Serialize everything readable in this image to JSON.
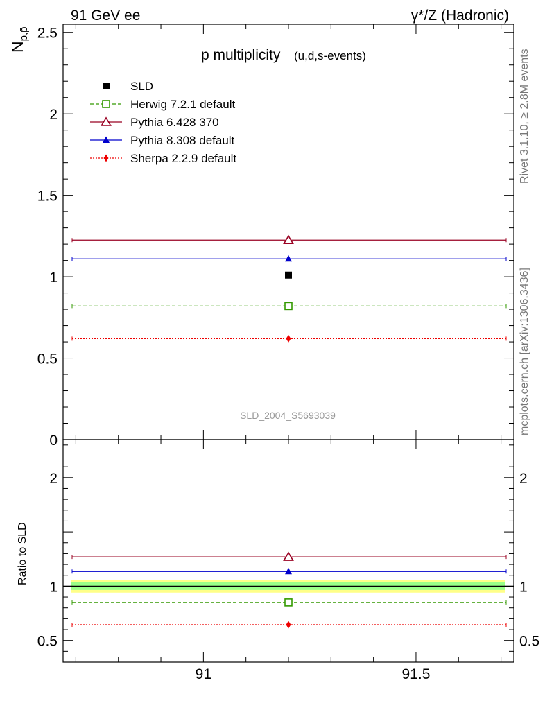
{
  "header": {
    "left": "91 GeV ee",
    "right": "γ*/Z (Hadronic)"
  },
  "side_labels": {
    "rivet": "Rivet 3.1.10, ≥ 2.8M events",
    "mcplots": "mcplots.cern.ch [arXiv:1306.3436]"
  },
  "chart_data": [
    {
      "type": "scatter",
      "title": "p multiplicity",
      "subtitle": "(u,d,s-events)",
      "ylabel": "N_{p,p̄}",
      "watermark": "SLD_2004_S5693039",
      "xlim": [
        90.67,
        91.73
      ],
      "ylim": [
        0,
        2.55
      ],
      "y_ticks": [
        "0",
        "0.5",
        "1",
        "1.5",
        "2",
        "2.5"
      ],
      "legend_position": "top-left",
      "series": [
        {
          "name": "SLD",
          "x": 91.2,
          "y": 1.01,
          "marker": "square",
          "color": "#000000",
          "line": "none"
        },
        {
          "name": "Herwig 7.2.1 default",
          "x": 91.2,
          "y": 0.82,
          "marker": "open-square",
          "color": "#339900",
          "line": "dashed",
          "xerr": [
            90.67,
            91.73
          ]
        },
        {
          "name": "Pythia 6.428 370",
          "x": 91.2,
          "y": 1.225,
          "marker": "open-triangle",
          "color": "#990022",
          "line": "solid",
          "xerr": [
            90.67,
            91.73
          ]
        },
        {
          "name": "Pythia 8.308 default",
          "x": 91.2,
          "y": 1.11,
          "marker": "triangle",
          "color": "#0000cc",
          "line": "solid",
          "xerr": [
            90.67,
            91.73
          ]
        },
        {
          "name": "Sherpa 2.2.9 default",
          "x": 91.2,
          "y": 0.62,
          "marker": "diamond",
          "color": "#ee0000",
          "line": "dotted",
          "xerr": [
            90.67,
            91.73
          ]
        }
      ]
    },
    {
      "type": "scatter",
      "ylabel": "Ratio to SLD",
      "xlim": [
        90.67,
        91.73
      ],
      "ylim": [
        0.3,
        2.35
      ],
      "x_ticks": [
        "91",
        "91.5"
      ],
      "y_ticks": [
        "0.5",
        "1",
        "2"
      ],
      "band": {
        "outer": [
          0.94,
          1.06
        ],
        "inner": [
          0.965,
          1.035
        ],
        "outer_color": "#ffff88",
        "inner_color": "#99ff88"
      },
      "series": [
        {
          "name": "Herwig 7.2.1 default",
          "x": 91.2,
          "y": 0.85,
          "marker": "open-square",
          "color": "#339900",
          "line": "dashed"
        },
        {
          "name": "Pythia 6.428 370",
          "x": 91.2,
          "y": 1.27,
          "marker": "open-triangle",
          "color": "#990022",
          "line": "solid"
        },
        {
          "name": "Pythia 8.308 default",
          "x": 91.2,
          "y": 1.135,
          "marker": "triangle",
          "color": "#0000cc",
          "line": "solid"
        },
        {
          "name": "Sherpa 2.2.9 default",
          "x": 91.2,
          "y": 0.645,
          "marker": "diamond",
          "color": "#ee0000",
          "line": "dotted"
        }
      ]
    }
  ]
}
